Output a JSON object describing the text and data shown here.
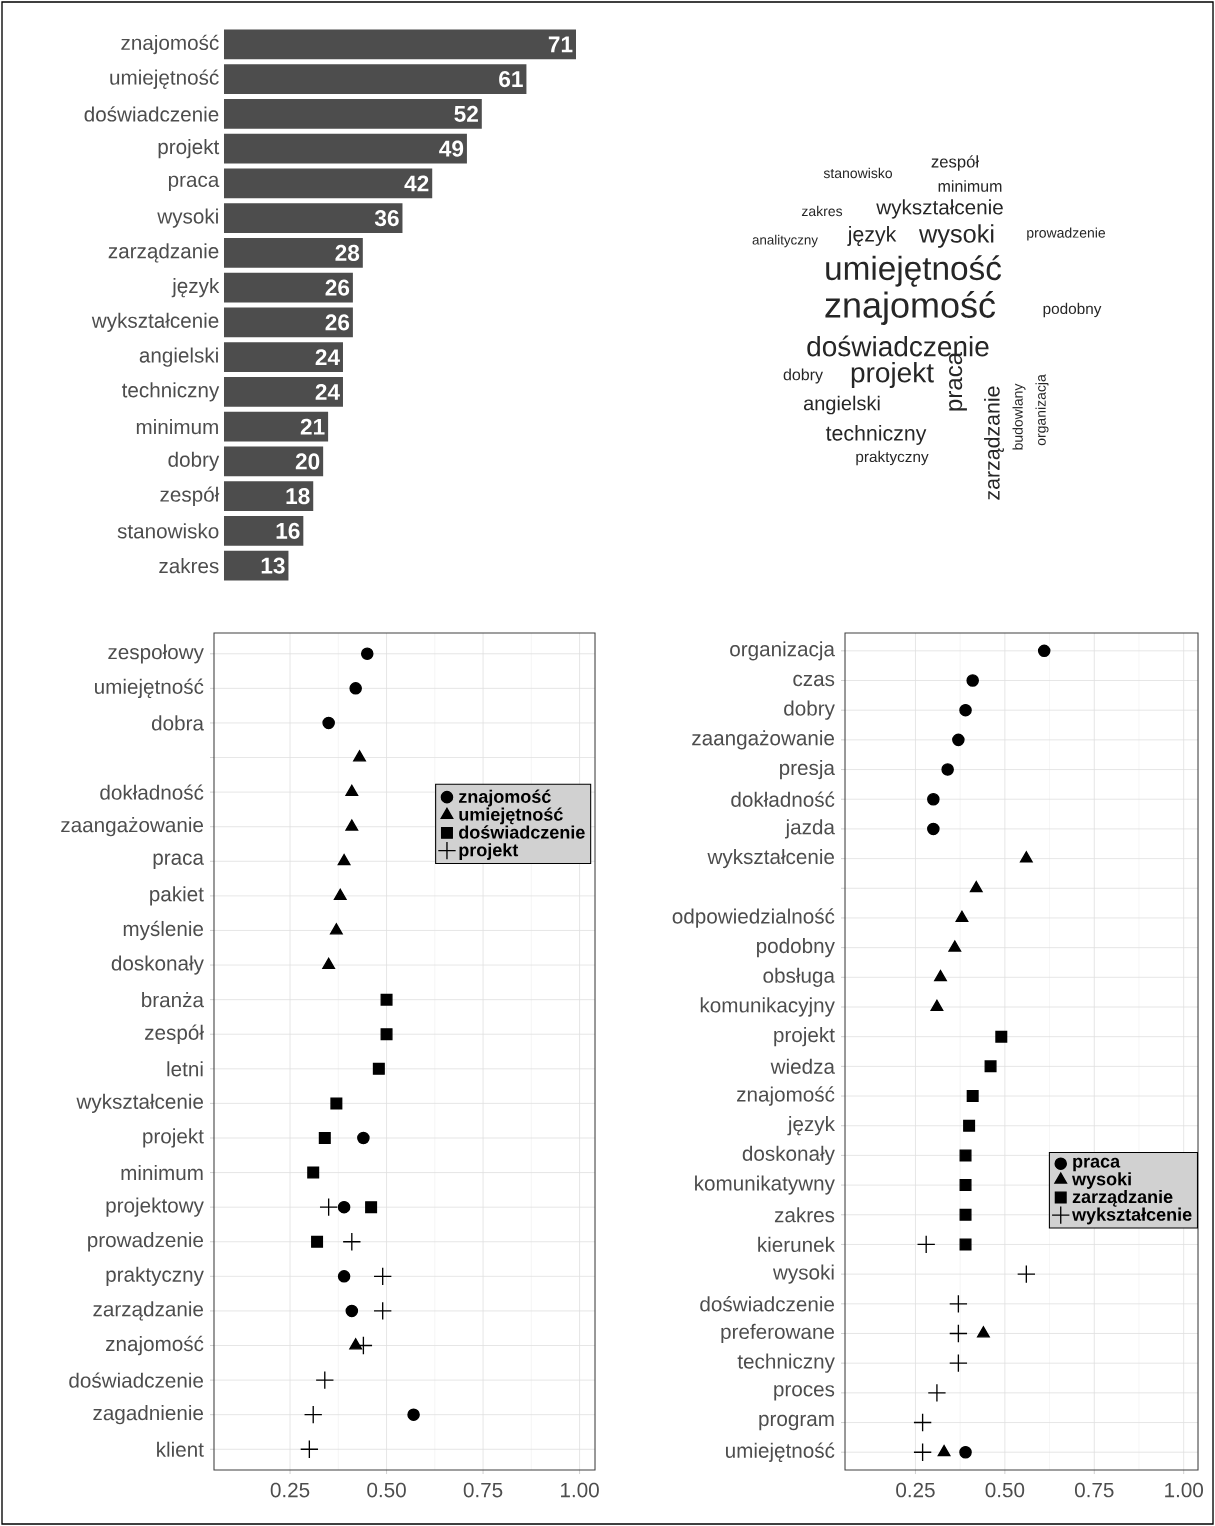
{
  "chart_data": [
    {
      "type": "bar",
      "orientation": "horizontal",
      "data_labels": true,
      "color": "#4d4d4d",
      "categories": [
        "znajomość",
        "umiejętność",
        "doświadczenie",
        "projekt",
        "praca",
        "wysoki",
        "zarządzanie",
        "język",
        "wykształcenie",
        "angielski",
        "techniczny",
        "minimum",
        "dobry",
        "zespół",
        "stanowisko",
        "zakres"
      ],
      "values": [
        71,
        61,
        52,
        49,
        42,
        36,
        28,
        26,
        26,
        24,
        24,
        21,
        20,
        18,
        16,
        13
      ]
    },
    {
      "type": "other",
      "categories": [
        "stanowisko",
        "zespół",
        "minimum",
        "zakres",
        "wykształcenie",
        "analityczny",
        "język",
        "wysoki",
        "prowadzenie",
        "umiejętność",
        "znajomość",
        "podobny",
        "doświadczenie",
        "dobry",
        "projekt",
        "praca",
        "zarządzanie",
        "budowlany",
        "organizacja",
        "angielski",
        "techniczny",
        "praktyczny"
      ]
    },
    {
      "type": "scatter",
      "orientation": "horizontal",
      "grid": true,
      "legend": "top right",
      "xlim": [
        0.053,
        1.04
      ],
      "xticks": [
        {
          "value": 0.25,
          "label": "0.25"
        },
        {
          "value": 0.5,
          "label": "0.50"
        },
        {
          "value": 0.75,
          "label": "0.75"
        },
        {
          "value": 1,
          "label": "1.00"
        }
      ],
      "categories": [
        "zespołowy",
        "umiejętność",
        "dobra",
        null,
        "dokładność",
        "zaangażowanie",
        "praca",
        "pakiet",
        "myślenie",
        "doskonały",
        "branża",
        "zespół",
        "letni",
        "wykształcenie",
        "projekt",
        "minimum",
        "projektowy",
        "prowadzenie",
        "praktyczny",
        "zarządzanie",
        "znajomość",
        "doświadczenie",
        "zagadnienie",
        "klient"
      ],
      "series": [
        {
          "name": "znajomość",
          "color": "#000000",
          "marker": "circle",
          "values": [
            0.45,
            0.42,
            0.35,
            null,
            null,
            null,
            null,
            null,
            null,
            null,
            null,
            null,
            null,
            null,
            0.44,
            null,
            0.39,
            null,
            0.39,
            0.41,
            null,
            null,
            0.57,
            null
          ]
        },
        {
          "name": "umiejętność",
          "color": "#000000",
          "marker": "triangle",
          "values": [
            null,
            null,
            null,
            0.43,
            0.41,
            0.41,
            0.39,
            0.38,
            0.37,
            0.35,
            null,
            null,
            null,
            null,
            null,
            null,
            null,
            null,
            null,
            null,
            0.42,
            null,
            null,
            null
          ]
        },
        {
          "name": "doświadczenie",
          "color": "#000000",
          "marker": "square",
          "values": [
            null,
            null,
            null,
            null,
            null,
            null,
            null,
            null,
            null,
            null,
            0.5,
            0.5,
            0.48,
            0.37,
            0.34,
            0.31,
            0.46,
            0.32,
            null,
            null,
            null,
            null,
            null,
            null
          ]
        },
        {
          "name": "projekt",
          "color": "#000000",
          "marker": "cross",
          "values": [
            null,
            null,
            null,
            null,
            null,
            null,
            null,
            null,
            null,
            null,
            null,
            null,
            null,
            null,
            null,
            null,
            0.35,
            0.41,
            0.49,
            0.49,
            0.44,
            0.34,
            0.31,
            0.3
          ]
        }
      ]
    },
    {
      "type": "scatter",
      "orientation": "horizontal",
      "grid": true,
      "legend": "bottom right",
      "xlim": [
        0.053,
        1.04
      ],
      "xticks": [
        {
          "value": 0.25,
          "label": "0.25"
        },
        {
          "value": 0.5,
          "label": "0.50"
        },
        {
          "value": 0.75,
          "label": "0.75"
        },
        {
          "value": 1,
          "label": "1.00"
        }
      ],
      "categories": [
        "organizacja",
        "czas",
        "dobry",
        "zaangażowanie",
        "presja",
        "dokładność",
        "jazda",
        "wykształcenie",
        null,
        "odpowiedzialność",
        "podobny",
        "obsługa",
        "komunikacyjny",
        "projekt",
        "wiedza",
        "znajomość",
        "język",
        "doskonały",
        "komunikatywny",
        "zakres",
        "kierunek",
        "wysoki",
        "doświadczenie",
        "preferowane",
        "techniczny",
        "proces",
        "program",
        "umiejętność"
      ],
      "series": [
        {
          "name": "praca",
          "color": "#000000",
          "marker": "circle",
          "values": [
            0.61,
            0.41,
            0.39,
            0.37,
            0.34,
            0.3,
            0.3,
            null,
            null,
            null,
            null,
            null,
            null,
            null,
            null,
            null,
            null,
            null,
            null,
            null,
            null,
            null,
            null,
            null,
            null,
            null,
            null,
            0.39
          ]
        },
        {
          "name": "wysoki",
          "color": "#000000",
          "marker": "triangle",
          "values": [
            null,
            null,
            null,
            null,
            null,
            null,
            null,
            0.56,
            0.42,
            0.38,
            0.36,
            0.32,
            0.31,
            null,
            null,
            null,
            null,
            null,
            null,
            null,
            null,
            null,
            null,
            0.44,
            null,
            null,
            null,
            0.33
          ]
        },
        {
          "name": "zarządzanie",
          "color": "#000000",
          "marker": "square",
          "values": [
            null,
            null,
            null,
            null,
            null,
            null,
            null,
            null,
            null,
            null,
            null,
            null,
            null,
            0.49,
            0.46,
            0.41,
            0.4,
            0.39,
            0.39,
            0.39,
            0.39,
            null,
            null,
            null,
            null,
            null,
            null,
            null
          ]
        },
        {
          "name": "wykształcenie",
          "color": "#000000",
          "marker": "cross",
          "values": [
            null,
            null,
            null,
            null,
            null,
            null,
            null,
            null,
            null,
            null,
            null,
            null,
            null,
            null,
            null,
            null,
            null,
            null,
            null,
            null,
            0.28,
            0.56,
            0.37,
            0.37,
            0.37,
            0.31,
            0.27,
            0.27
          ]
        }
      ]
    }
  ]
}
